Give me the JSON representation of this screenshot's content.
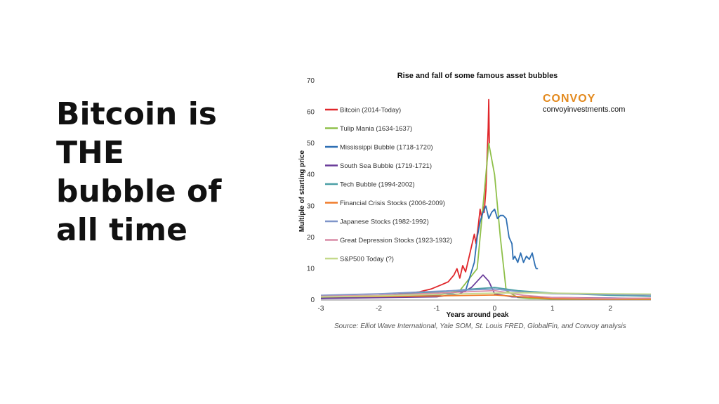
{
  "headline": {
    "lines": [
      "Bitcoin is",
      "THE",
      "bubble of",
      "all time"
    ]
  },
  "branding": {
    "name": "CONVOY",
    "url": "convoyinvestments.com",
    "color": "#e38a1f"
  },
  "source": "Source: Elliot Wave International, Yale SOM, St. Louis FRED, GlobalFin, and Convoy analysis",
  "chart_data": {
    "type": "line",
    "title": "Rise and fall of some famous asset bubbles",
    "xlabel": "Years around peak",
    "ylabel": "Multiple of starting price",
    "xlim": [
      -3,
      2.7
    ],
    "ylim": [
      0,
      70
    ],
    "x_ticks": [
      -3,
      -2,
      -1,
      0,
      1,
      2
    ],
    "y_ticks": [
      0,
      10,
      20,
      30,
      40,
      50,
      60,
      70
    ],
    "grid": false,
    "legend_position": "upper-left",
    "series": [
      {
        "name": "Bitcoin (2014-Today)",
        "color": "#e0262a",
        "points": [
          [
            -3,
            1
          ],
          [
            -2.5,
            1.1
          ],
          [
            -2,
            1.3
          ],
          [
            -1.6,
            2
          ],
          [
            -1.3,
            2.6
          ],
          [
            -1.1,
            3.5
          ],
          [
            -0.9,
            5
          ],
          [
            -0.8,
            5.8
          ],
          [
            -0.7,
            8
          ],
          [
            -0.65,
            10
          ],
          [
            -0.6,
            7
          ],
          [
            -0.55,
            11
          ],
          [
            -0.5,
            9
          ],
          [
            -0.45,
            13
          ],
          [
            -0.4,
            17
          ],
          [
            -0.35,
            21
          ],
          [
            -0.32,
            18
          ],
          [
            -0.28,
            24
          ],
          [
            -0.25,
            29
          ],
          [
            -0.22,
            26
          ],
          [
            -0.2,
            30
          ],
          [
            -0.18,
            28
          ],
          [
            -0.15,
            35
          ],
          [
            -0.13,
            45
          ],
          [
            -0.11,
            55
          ],
          [
            -0.1,
            64
          ],
          [
            -0.09,
            50
          ]
        ]
      },
      {
        "name": "Tulip Mania (1634-1637)",
        "color": "#8fc04a",
        "points": [
          [
            -3,
            0.8
          ],
          [
            -2,
            0.9
          ],
          [
            -1,
            1.5
          ],
          [
            -0.6,
            3
          ],
          [
            -0.3,
            10
          ],
          [
            -0.2,
            30
          ],
          [
            -0.1,
            50
          ],
          [
            0,
            40
          ],
          [
            0.1,
            20
          ],
          [
            0.2,
            3
          ],
          [
            0.4,
            0.8
          ],
          [
            0.6,
            0.5
          ],
          [
            1,
            0.3
          ],
          [
            2,
            0.3
          ],
          [
            2.7,
            0.2
          ]
        ]
      },
      {
        "name": "Mississippi Bubble (1718-1720)",
        "color": "#2e6fb3",
        "points": [
          [
            -3,
            0.5
          ],
          [
            -2,
            1
          ],
          [
            -1,
            1.5
          ],
          [
            -0.5,
            3
          ],
          [
            -0.35,
            12
          ],
          [
            -0.3,
            20
          ],
          [
            -0.25,
            25
          ],
          [
            -0.2,
            28
          ],
          [
            -0.15,
            30
          ],
          [
            -0.1,
            26
          ],
          [
            -0.05,
            28
          ],
          [
            0,
            29
          ],
          [
            0.05,
            26
          ],
          [
            0.1,
            27
          ],
          [
            0.15,
            27
          ],
          [
            0.2,
            26
          ],
          [
            0.25,
            20
          ],
          [
            0.3,
            18
          ],
          [
            0.32,
            13
          ],
          [
            0.35,
            14
          ],
          [
            0.4,
            12
          ],
          [
            0.45,
            15
          ],
          [
            0.5,
            12
          ],
          [
            0.55,
            14
          ],
          [
            0.6,
            13
          ],
          [
            0.65,
            15
          ],
          [
            0.7,
            11
          ],
          [
            0.72,
            10
          ],
          [
            0.75,
            10
          ]
        ]
      },
      {
        "name": "South Sea Bubble (1719-1721)",
        "color": "#6a3d9a",
        "points": [
          [
            -3,
            0.5
          ],
          [
            -1,
            1
          ],
          [
            -0.6,
            2
          ],
          [
            -0.4,
            4
          ],
          [
            -0.3,
            6
          ],
          [
            -0.2,
            8
          ],
          [
            -0.15,
            7
          ],
          [
            -0.1,
            6
          ],
          [
            0,
            2
          ],
          [
            0.3,
            1
          ],
          [
            1,
            0.8
          ],
          [
            2,
            0.6
          ],
          [
            2.7,
            0.5
          ]
        ]
      },
      {
        "name": "Tech Bubble (1994-2002)",
        "color": "#4c9fa6",
        "points": [
          [
            -3,
            1
          ],
          [
            -2,
            1.5
          ],
          [
            -1,
            2.5
          ],
          [
            -0.4,
            3.5
          ],
          [
            0,
            4
          ],
          [
            0.4,
            3
          ],
          [
            1,
            2.2
          ],
          [
            2,
            1.5
          ],
          [
            2.7,
            1.2
          ]
        ]
      },
      {
        "name": "Financial Crisis Stocks (2006-2009)",
        "color": "#f07c2a",
        "points": [
          [
            -3,
            1
          ],
          [
            -2,
            1.1
          ],
          [
            -1,
            1.3
          ],
          [
            0,
            1.6
          ],
          [
            0.5,
            1
          ],
          [
            1,
            0.4
          ],
          [
            2,
            0.3
          ],
          [
            2.7,
            0.3
          ]
        ]
      },
      {
        "name": "Japanese Stocks (1982-1992)",
        "color": "#7f95c9",
        "points": [
          [
            -3,
            1.5
          ],
          [
            -2,
            2
          ],
          [
            -1,
            2.8
          ],
          [
            0,
            3.5
          ],
          [
            0.5,
            2.5
          ],
          [
            1,
            2
          ],
          [
            2,
            1.8
          ],
          [
            2.7,
            1.6
          ]
        ]
      },
      {
        "name": "Great Depression Stocks (1923-1932)",
        "color": "#d98ba6",
        "points": [
          [
            -3,
            1.2
          ],
          [
            -2,
            1.5
          ],
          [
            -1,
            2.2
          ],
          [
            0,
            3
          ],
          [
            0.5,
            1.5
          ],
          [
            1,
            0.8
          ],
          [
            2,
            0.5
          ],
          [
            2.7,
            0.6
          ]
        ]
      },
      {
        "name": "S&P500 Today (?)",
        "color": "#c4d98a",
        "points": [
          [
            -3,
            1
          ],
          [
            -2,
            1.3
          ],
          [
            -1,
            1.8
          ],
          [
            0,
            2.2
          ],
          [
            0.5,
            2.3
          ],
          [
            1,
            2.2
          ],
          [
            2,
            2
          ],
          [
            2.7,
            1.9
          ]
        ]
      }
    ]
  }
}
